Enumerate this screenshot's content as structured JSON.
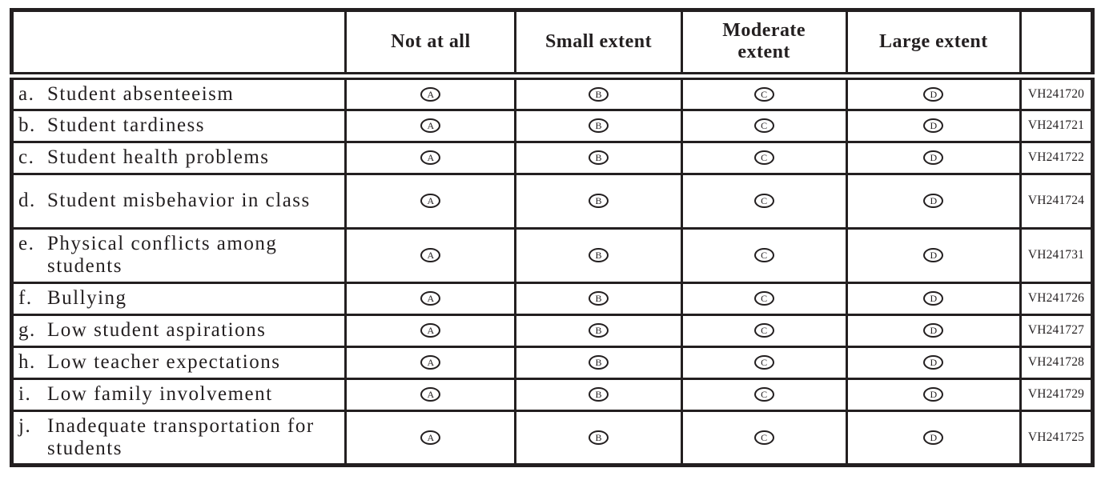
{
  "colors": {
    "ink": "#231f20",
    "background": "#ffffff"
  },
  "table": {
    "header": {
      "options": [
        "Not at all",
        "Small extent",
        "Moderate extent",
        "Large extent"
      ]
    },
    "option_letters": [
      "A",
      "B",
      "C",
      "D"
    ],
    "rows": [
      {
        "letter": "a.",
        "text": "Student absenteeism",
        "code": "VH241720"
      },
      {
        "letter": "b.",
        "text": "Student tardiness",
        "code": "VH241721"
      },
      {
        "letter": "c.",
        "text": "Student health problems",
        "code": "VH241722"
      },
      {
        "letter": "d.",
        "text": "Student misbehavior in class",
        "code": "VH241724"
      },
      {
        "letter": "e.",
        "text": "Physical conflicts among students",
        "code": "VH241731"
      },
      {
        "letter": "f.",
        "text": "Bullying",
        "code": "VH241726"
      },
      {
        "letter": "g.",
        "text": "Low student aspirations",
        "code": "VH241727"
      },
      {
        "letter": "h.",
        "text": "Low teacher expectations",
        "code": "VH241728"
      },
      {
        "letter": "i.",
        "text": "Low family involvement",
        "code": "VH241729"
      },
      {
        "letter": "j.",
        "text": "Inadequate transportation for students",
        "code": "VH241725"
      }
    ]
  }
}
